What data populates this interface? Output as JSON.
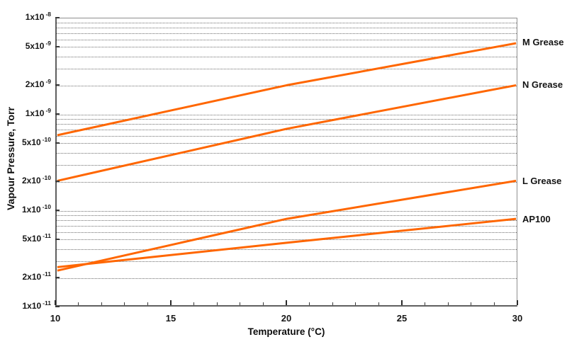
{
  "chart_data": {
    "type": "line",
    "title": "",
    "xlabel": "Temperature (°C)",
    "ylabel": "Vapour Pressure, Torr",
    "xlim": [
      10,
      30
    ],
    "ylim": [
      1e-11,
      1e-08
    ],
    "yscale": "log",
    "grid": "horizontal dotted minor log gridlines",
    "legend_position": "labels at right end of each line",
    "x_major_ticks": [
      10,
      15,
      20,
      25,
      30
    ],
    "x_minor_step": 1,
    "x": [
      10,
      20,
      30
    ],
    "series": [
      {
        "name": "M Grease",
        "values": [
          6e-10,
          2e-09,
          5.5e-09
        ]
      },
      {
        "name": "N Grease",
        "values": [
          2e-10,
          7e-10,
          2e-09
        ]
      },
      {
        "name": "L Grease",
        "values": [
          2.3e-11,
          8e-11,
          2e-10
        ]
      },
      {
        "name": "AP100",
        "values": [
          2.5e-11,
          4.5e-11,
          8e-11
        ]
      }
    ],
    "y_ticks": [
      {
        "coef": "1",
        "base": "x10",
        "exp": "-8",
        "value": 1e-08
      },
      {
        "coef": "5",
        "base": "x10",
        "exp": "-9",
        "value": 5e-09
      },
      {
        "coef": "2",
        "base": "x10",
        "exp": "-9",
        "value": 2e-09
      },
      {
        "coef": "1",
        "base": "x10",
        "exp": "-9",
        "value": 1e-09
      },
      {
        "coef": "5",
        "base": "x10",
        "exp": "-10",
        "value": 5e-10
      },
      {
        "coef": "2",
        "base": "x10",
        "exp": "-10",
        "value": 2e-10
      },
      {
        "coef": "1",
        "base": "x10",
        "exp": "-10",
        "value": 1e-10
      },
      {
        "coef": "5",
        "base": "x10",
        "exp": "-11",
        "value": 5e-11
      },
      {
        "coef": "2",
        "base": "x10",
        "exp": "-11",
        "value": 2e-11
      },
      {
        "coef": "1",
        "base": "x10",
        "exp": "-11",
        "value": 1e-11
      }
    ],
    "colors": {
      "line": "#FF6600",
      "grid": "#6F6F6F",
      "axis": "#8F8F8F",
      "text": "#111111"
    }
  }
}
